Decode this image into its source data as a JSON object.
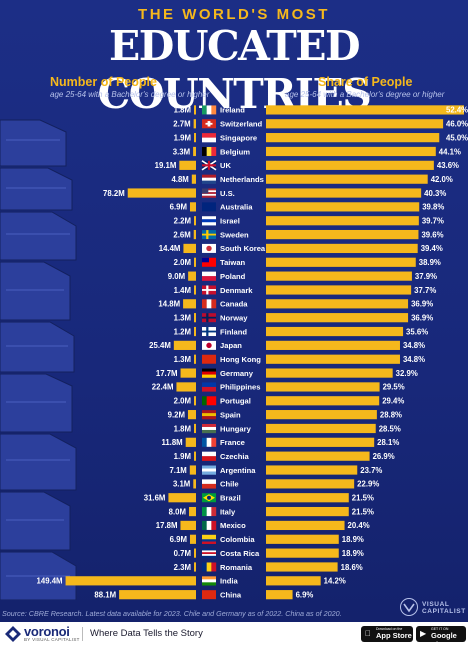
{
  "header": {
    "title_top": "THE WORLD'S MOST",
    "title_main": "EDUCATED COUNTRIES"
  },
  "left_column": {
    "title": "Number of People",
    "subtitle": "age 25-64 with a Bachelor's degree or higher"
  },
  "right_column": {
    "title": "Share of People",
    "subtitle": "age 25-64 with a Bachelor's degree or higher"
  },
  "chart_data": {
    "type": "bar",
    "categories": [
      "Ireland",
      "Switzerland",
      "Singapore",
      "Belgium",
      "UK",
      "Netherlands",
      "U.S.",
      "Australia",
      "Israel",
      "Sweden",
      "South Korea",
      "Taiwan",
      "Poland",
      "Denmark",
      "Canada",
      "Norway",
      "Finland",
      "Japan",
      "Hong Kong",
      "Germany",
      "Philippines",
      "Portugal",
      "Spain",
      "Hungary",
      "France",
      "Czechia",
      "Argentina",
      "Chile",
      "Brazil",
      "Italy",
      "Mexico",
      "Colombia",
      "Costa Rica",
      "Romania",
      "India",
      "China"
    ],
    "series": [
      {
        "name": "Number of People",
        "unit": "M",
        "values": [
          1.8,
          2.7,
          1.9,
          3.3,
          19.1,
          4.8,
          78.2,
          6.9,
          2.2,
          2.6,
          14.4,
          2.0,
          9.0,
          1.4,
          14.8,
          1.3,
          1.2,
          25.4,
          1.3,
          17.7,
          22.4,
          2.0,
          9.2,
          1.8,
          11.8,
          1.9,
          7.1,
          3.1,
          31.6,
          8.0,
          17.8,
          6.9,
          0.7,
          2.3,
          149.4,
          88.1
        ],
        "labels": [
          "1.8M",
          "2.7M",
          "1.9M",
          "3.3M",
          "19.1M",
          "4.8M",
          "78.2M",
          "6.9M",
          "2.2M",
          "2.6M",
          "14.4M",
          "2.0M",
          "9.0M",
          "1.4M",
          "14.8M",
          "1.3M",
          "1.2M",
          "25.4M",
          "1.3M",
          "17.7M",
          "22.4M",
          "2.0M",
          "9.2M",
          "1.8M",
          "11.8M",
          "1.9M",
          "7.1M",
          "3.1M",
          "31.6M",
          "8.0M",
          "17.8M",
          "6.9M",
          "0.7M",
          "2.3M",
          "149.4M",
          "88.1M"
        ]
      },
      {
        "name": "Share of People",
        "unit": "%",
        "values": [
          52.4,
          46.0,
          45.0,
          44.1,
          43.6,
          42.0,
          40.3,
          39.8,
          39.7,
          39.6,
          39.4,
          38.9,
          37.9,
          37.7,
          36.9,
          36.9,
          35.6,
          34.8,
          34.8,
          32.9,
          29.5,
          29.4,
          28.8,
          28.5,
          28.1,
          26.9,
          23.7,
          22.9,
          21.5,
          21.5,
          20.4,
          18.9,
          18.9,
          18.6,
          14.2,
          6.9
        ],
        "labels": [
          "52.4%",
          "46.0%",
          "45.0%",
          "44.1%",
          "43.6%",
          "42.0%",
          "40.3%",
          "39.8%",
          "39.7%",
          "39.6%",
          "39.4%",
          "38.9%",
          "37.9%",
          "37.7%",
          "36.9%",
          "36.9%",
          "35.6%",
          "34.8%",
          "34.8%",
          "32.9%",
          "29.5%",
          "29.4%",
          "28.8%",
          "28.5%",
          "28.1%",
          "26.9%",
          "23.7%",
          "22.9%",
          "21.5%",
          "21.5%",
          "20.4%",
          "18.9%",
          "18.9%",
          "18.6%",
          "14.2%",
          "6.9%"
        ]
      }
    ],
    "flag_icons": [
      "ireland-flag-icon",
      "switzerland-flag-icon",
      "singapore-flag-icon",
      "belgium-flag-icon",
      "uk-flag-icon",
      "netherlands-flag-icon",
      "us-flag-icon",
      "australia-flag-icon",
      "israel-flag-icon",
      "sweden-flag-icon",
      "south-korea-flag-icon",
      "taiwan-flag-icon",
      "poland-flag-icon",
      "denmark-flag-icon",
      "canada-flag-icon",
      "norway-flag-icon",
      "finland-flag-icon",
      "japan-flag-icon",
      "hong-kong-flag-icon",
      "germany-flag-icon",
      "philippines-flag-icon",
      "portugal-flag-icon",
      "spain-flag-icon",
      "hungary-flag-icon",
      "france-flag-icon",
      "czechia-flag-icon",
      "argentina-flag-icon",
      "chile-flag-icon",
      "brazil-flag-icon",
      "italy-flag-icon",
      "mexico-flag-icon",
      "colombia-flag-icon",
      "costa-rica-flag-icon",
      "romania-flag-icon",
      "india-flag-icon",
      "china-flag-icon"
    ],
    "bar_color": "#f5b81c"
  },
  "source": "Source: CBRE Research. Latest data available for 2023. Chile and Germany as of 2022. China as of 2020.",
  "publisher": {
    "logo_text_1": "VISUAL",
    "logo_text_2": "CAPITALIST"
  },
  "footer": {
    "brand": "voronoi",
    "brand_sub": "BY VISUAL CAPITALIST",
    "tagline": "Where Data Tells the Story",
    "app_store_small": "Download on the",
    "app_store_big": "App Store",
    "google_play_small": "GET IT ON",
    "google_play_big": "Google Play"
  },
  "colors": {
    "background": "#1a2a78",
    "accent": "#f5b81c",
    "text": "#ffffff"
  }
}
